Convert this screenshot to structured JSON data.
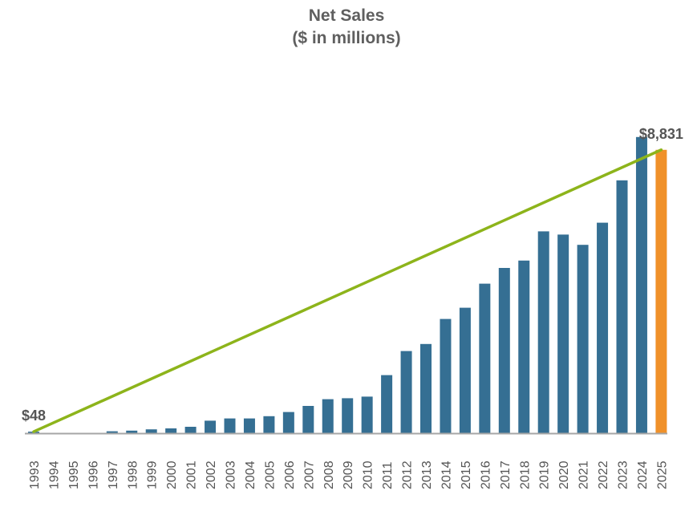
{
  "chart_data": {
    "type": "bar",
    "title": "Net Sales",
    "subtitle": "($ in millions)",
    "categories": [
      "1993",
      "1994",
      "1995",
      "1996",
      "1997",
      "1998",
      "1999",
      "2000",
      "2001",
      "2002",
      "2003",
      "2004",
      "2005",
      "2006",
      "2007",
      "2008",
      "2009",
      "2010",
      "2011",
      "2012",
      "2013",
      "2014",
      "2015",
      "2016",
      "2017",
      "2018",
      "2019",
      "2020",
      "2021",
      "2022",
      "2023",
      "2024",
      "2025"
    ],
    "values": [
      48,
      0,
      0,
      0,
      60,
      80,
      120,
      150,
      200,
      390,
      460,
      460,
      530,
      660,
      850,
      1060,
      1090,
      1140,
      1810,
      2560,
      2780,
      3560,
      3910,
      4660,
      5150,
      5380,
      6290,
      6190,
      5870,
      6560,
      7880,
      9230,
      8831
    ],
    "bar_colors": [
      "#356f93",
      "#356f93",
      "#356f93",
      "#356f93",
      "#356f93",
      "#356f93",
      "#356f93",
      "#356f93",
      "#356f93",
      "#356f93",
      "#356f93",
      "#356f93",
      "#356f93",
      "#356f93",
      "#356f93",
      "#356f93",
      "#356f93",
      "#356f93",
      "#356f93",
      "#356f93",
      "#356f93",
      "#356f93",
      "#356f93",
      "#356f93",
      "#356f93",
      "#356f93",
      "#356f93",
      "#356f93",
      "#356f93",
      "#356f93",
      "#356f93",
      "#356f93",
      "#f0912a"
    ],
    "trend_line": {
      "from": "1993",
      "to": "2025",
      "start_value": 48,
      "end_value": 8831,
      "color": "#8db41b"
    },
    "annotations": [
      {
        "text": "$48",
        "at": "1993"
      },
      {
        "text": "$8,831",
        "at": "2025"
      }
    ],
    "ylim": [
      0,
      10000
    ],
    "grid": false,
    "legend": "none",
    "axis_color": "#a6a6a6"
  }
}
